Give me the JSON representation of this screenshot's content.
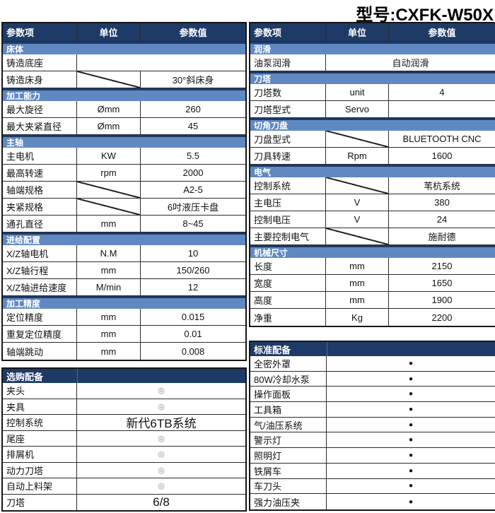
{
  "title": "型号:CXFK-W50X",
  "colors": {
    "header_bg": "#1e3a67",
    "section_bg": "#6089c2",
    "border": "#161616",
    "standard_dot": "#000000",
    "optional_mark": "#8a8a8a"
  },
  "left_table": {
    "header": [
      "参数项",
      "单位",
      "参数值"
    ],
    "sections": [
      {
        "name": "床体",
        "rows": [
          {
            "label": "铸造底座",
            "merge": true,
            "value": ""
          },
          {
            "label": "铸造床身",
            "diagonal_unit": true,
            "value": "30°斜床身"
          }
        ]
      },
      {
        "name": "加工能力",
        "rows": [
          {
            "label": "最大旋径",
            "unit": "Ømm",
            "value": "260"
          },
          {
            "label": "最大夹紧直径",
            "unit": "Ømm",
            "value": "45"
          }
        ]
      },
      {
        "name": "主轴",
        "rows": [
          {
            "label": "主电机",
            "unit": "KW",
            "value": "5.5"
          },
          {
            "label": "最高转速",
            "unit": "rpm",
            "value": "2000"
          },
          {
            "label": "轴端规格",
            "diagonal_unit": true,
            "value": "A2-5"
          },
          {
            "label": "夹紧规格",
            "diagonal_unit": true,
            "value": "6吋液压卡盘"
          },
          {
            "label": "通孔直径",
            "unit": "mm",
            "value": "8~45"
          }
        ]
      },
      {
        "name": "进给配置",
        "rows": [
          {
            "label": "X/Z轴电机",
            "unit": "N.M",
            "value": "10"
          },
          {
            "label": "X/Z轴行程",
            "unit": "mm",
            "value": "150/260"
          },
          {
            "label": "X/Z轴进给速度",
            "unit": "M/min",
            "value": "12"
          }
        ]
      },
      {
        "name": "加工精度",
        "rows": [
          {
            "label": "定位精度",
            "unit": "mm",
            "value": "0.015"
          },
          {
            "label": "重复定位精度",
            "unit": "mm",
            "value": "0.01"
          },
          {
            "label": "轴端跳动",
            "unit": "mm",
            "value": "0.008"
          }
        ]
      }
    ]
  },
  "right_table": {
    "header": [
      "参数项",
      "单位",
      "参数值"
    ],
    "sections": [
      {
        "name": "润滑",
        "rows": [
          {
            "label": "油泵润滑",
            "merge": true,
            "value": "自动润滑"
          }
        ]
      },
      {
        "name": "刀塔",
        "rows": [
          {
            "label": "刀塔数",
            "unit": "unit",
            "value": "4"
          },
          {
            "label": "刀塔型式",
            "unit": "Servo",
            "value": ""
          }
        ]
      },
      {
        "name": "切角刀盘",
        "rows": [
          {
            "label": "刀盘型式",
            "diagonal_unit": true,
            "value": "BLUETOOTH CNC"
          },
          {
            "label": "刀具转速",
            "unit": "Rpm",
            "value": "1600"
          }
        ]
      },
      {
        "name": "电气",
        "rows": [
          {
            "label": "控制系统",
            "diagonal_unit": true,
            "value": "苇杭系统"
          },
          {
            "label": "主电压",
            "unit": "V",
            "value": "380"
          },
          {
            "label": "控制电压",
            "unit": "V",
            "value": "24"
          },
          {
            "label": "主要控制电气",
            "diagonal_unit": true,
            "value": "施耐德"
          }
        ]
      },
      {
        "name": "机械尺寸",
        "rows": [
          {
            "label": "长度",
            "unit": "mm",
            "value": "2150"
          },
          {
            "label": "宽度",
            "unit": "mm",
            "value": "1650"
          },
          {
            "label": "高度",
            "unit": "mm",
            "value": "1900"
          },
          {
            "label": "净重",
            "unit": "Kg",
            "value": "2200"
          }
        ]
      }
    ]
  },
  "optional_table": {
    "title": "选购配备",
    "rows": [
      {
        "label": "夹头",
        "value": "◎",
        "mark": true
      },
      {
        "label": "夹具",
        "value": "◎",
        "mark": true
      },
      {
        "label": "控制系统",
        "value": "新代6TB系统",
        "big": true
      },
      {
        "label": "尾座",
        "value": "◎",
        "mark": true
      },
      {
        "label": "排屑机",
        "value": "◎",
        "mark": true
      },
      {
        "label": "动力刀塔",
        "value": "◎",
        "mark": true
      },
      {
        "label": "自动上料架",
        "value": "◎",
        "mark": true
      },
      {
        "label": "刀塔",
        "value": "6/8",
        "big": true
      }
    ]
  },
  "standard_table": {
    "title": "标准配备",
    "rows": [
      {
        "label": "全密外罩",
        "value": "●",
        "dot": true
      },
      {
        "label": "80W冷却水泵",
        "value": "●",
        "dot": true
      },
      {
        "label": "操作面板",
        "value": "●",
        "dot": true
      },
      {
        "label": "工具箱",
        "value": "●",
        "dot": true
      },
      {
        "label": "气/油压系统",
        "value": "●",
        "dot": true
      },
      {
        "label": "警示灯",
        "value": "●",
        "dot": true
      },
      {
        "label": "照明灯",
        "value": "●",
        "dot": true
      },
      {
        "label": "铁屑车",
        "value": "●",
        "dot": true
      },
      {
        "label": "车刀头",
        "value": "●",
        "dot": true
      },
      {
        "label": "强力油压夹",
        "value": "●",
        "dot": true
      }
    ]
  }
}
